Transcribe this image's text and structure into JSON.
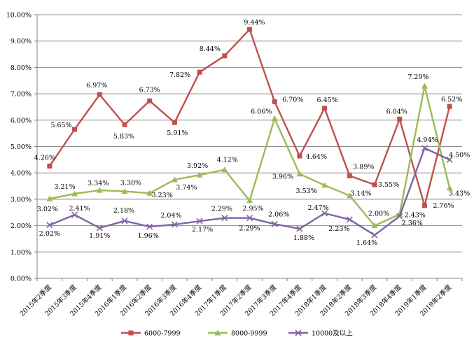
{
  "chart_data": {
    "type": "line",
    "title": "",
    "xlabel": "",
    "ylabel": "",
    "grid": true,
    "legend_position": "bottom",
    "data_label_format": "0.00%",
    "colors": {
      "grid": "#8C8C8C",
      "axis": "#808080",
      "tick_text": "#000000",
      "background": "#FFFFFF"
    },
    "y_axis": {
      "min": 0,
      "max": 10,
      "step": 1,
      "labels": [
        "0.00%",
        "1.00%",
        "2.00%",
        "3.00%",
        "4.00%",
        "5.00%",
        "6.00%",
        "7.00%",
        "8.00%",
        "9.00%",
        "10.00%"
      ]
    },
    "x_categories": [
      "2015年2季度",
      "2015年3季度",
      "2015年4季度",
      "2016年1季度",
      "2016年2季度",
      "2016年3季度",
      "2016年4季度",
      "2017年1季度",
      "2017年2季度",
      "2017年3季度",
      "2017年4季度",
      "2018年1季度",
      "2018年2季度",
      "2018年3季度",
      "2018年4季度",
      "2019年1季度",
      "2019年2季度"
    ],
    "series": [
      {
        "name": "6000-7999",
        "color": "#C0504D",
        "marker": "square",
        "values": [
          4.26,
          5.65,
          6.97,
          5.83,
          6.73,
          5.91,
          7.82,
          8.44,
          9.44,
          6.7,
          4.64,
          6.45,
          3.89,
          3.55,
          6.04,
          2.76,
          6.52
        ],
        "label_offsets": [
          [
            -7,
            -12
          ],
          [
            -19,
            -6
          ],
          [
            -4,
            -13
          ],
          [
            -1,
            17
          ],
          [
            0,
            -16
          ],
          [
            4,
            15
          ],
          [
            -28,
            4
          ],
          [
            -21,
            -10
          ],
          [
            7,
            -10
          ],
          [
            26,
            -3
          ],
          [
            24,
            1
          ],
          [
            4,
            -12
          ],
          [
            20,
            -13
          ],
          [
            20,
            0
          ],
          [
            -4,
            -11
          ],
          [
            27,
            0
          ],
          [
            3,
            -10
          ]
        ]
      },
      {
        "name": "8000-9999",
        "color": "#9BBB59",
        "marker": "triangle",
        "values": [
          3.02,
          3.21,
          3.34,
          3.3,
          3.23,
          3.74,
          3.92,
          4.12,
          2.95,
          6.06,
          3.96,
          3.53,
          3.14,
          2.0,
          2.43,
          7.29,
          3.43
        ],
        "label_offsets": [
          [
            -3,
            15
          ],
          [
            -14,
            -10
          ],
          [
            -2,
            -10
          ],
          [
            9,
            -12
          ],
          [
            18,
            3
          ],
          [
            17,
            11
          ],
          [
            -3,
            -13
          ],
          [
            4,
            -14
          ],
          [
            5,
            11
          ],
          [
            -19,
            -10
          ],
          [
            -24,
            4
          ],
          [
            -26,
            8
          ],
          [
            16,
            -3
          ],
          [
            6,
            -17
          ],
          [
            22,
            1
          ],
          [
            -9,
            -13
          ],
          [
            14,
            8
          ]
        ]
      },
      {
        "name": "10000及以上",
        "color": "#8064A2",
        "marker": "x",
        "values": [
          2.02,
          2.41,
          1.91,
          2.18,
          1.96,
          2.04,
          2.17,
          2.29,
          2.29,
          2.06,
          1.88,
          2.47,
          2.23,
          1.64,
          2.36,
          4.94,
          4.5
        ],
        "label_offsets": [
          [
            0,
            12
          ],
          [
            7,
            -9
          ],
          [
            0,
            11
          ],
          [
            -1,
            -15
          ],
          [
            -2,
            13
          ],
          [
            -5,
            -13
          ],
          [
            4,
            12
          ],
          [
            -4,
            -13
          ],
          [
            0,
            15
          ],
          [
            6,
            -14
          ],
          [
            6,
            13
          ],
          [
            -9,
            -8
          ],
          [
            -15,
            13
          ],
          [
            -11,
            11
          ],
          [
            18,
            10
          ],
          [
            4,
            -12
          ],
          [
            14,
            -7
          ]
        ]
      }
    ]
  }
}
